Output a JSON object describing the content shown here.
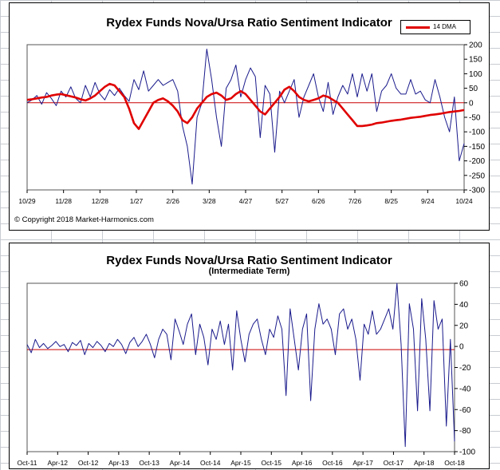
{
  "chart_data": [
    {
      "type": "line",
      "title": "Rydex Funds Nova/Ursa  Ratio Sentiment Indicator",
      "subtitle": "",
      "copyright": "© Copyright 2018 Market-Harmonics.com",
      "x_tick_labels": [
        "10/29",
        "11/28",
        "12/28",
        "1/27",
        "2/26",
        "3/28",
        "4/27",
        "5/27",
        "6/26",
        "7/26",
        "8/25",
        "9/24",
        "10/24"
      ],
      "y_tick_labels": [
        "200",
        "150",
        "100",
        "50",
        "0",
        "-50",
        "-100",
        "-150",
        "-200",
        "-250",
        "-300"
      ],
      "ylim": [
        -300,
        200
      ],
      "legend": {
        "entries": [
          "14 DMA"
        ],
        "position": "top-right"
      },
      "zero_line": true,
      "colors": {
        "raw": "#1a1a8c",
        "average": "#e00000",
        "zero_line": "#cc0000"
      },
      "x": [
        0,
        4,
        8,
        12,
        16,
        20,
        24,
        28,
        32,
        36,
        40,
        44,
        48,
        52,
        56,
        60,
        64,
        68,
        72,
        76,
        80,
        84,
        88,
        92,
        96,
        100,
        104,
        108,
        112,
        116,
        120,
        124,
        128,
        132,
        136,
        140,
        144,
        148,
        152,
        156,
        160,
        164,
        168,
        172,
        176,
        180,
        184,
        188,
        192,
        196,
        200,
        204,
        208,
        212,
        216,
        220,
        224,
        228,
        232,
        236,
        240,
        244,
        248,
        252,
        256,
        260,
        264,
        268,
        272,
        276,
        280,
        284,
        288,
        292,
        296,
        300,
        304,
        308,
        312,
        316,
        320,
        324,
        328,
        332,
        336,
        340,
        344,
        348,
        352,
        356,
        360
      ],
      "series": [
        {
          "name": "",
          "style": "raw",
          "values": [
            0,
            10,
            25,
            -5,
            35,
            15,
            -10,
            40,
            20,
            55,
            15,
            0,
            60,
            20,
            70,
            30,
            10,
            45,
            25,
            50,
            25,
            5,
            80,
            45,
            110,
            40,
            60,
            80,
            60,
            70,
            80,
            40,
            -80,
            -150,
            -280,
            -50,
            0,
            185,
            80,
            -50,
            -150,
            50,
            80,
            130,
            20,
            80,
            120,
            90,
            -120,
            60,
            30,
            -170,
            40,
            0,
            40,
            80,
            -50,
            20,
            60,
            100,
            20,
            -30,
            70,
            -40,
            20,
            60,
            30,
            100,
            20,
            100,
            40,
            100,
            -30,
            40,
            60,
            100,
            50,
            30,
            30,
            80,
            30,
            40,
            10,
            0,
            80,
            20,
            -50,
            -100,
            20,
            -200,
            -140
          ]
        },
        {
          "name": "14 DMA",
          "style": "average",
          "values": [
            10,
            12,
            15,
            18,
            20,
            25,
            28,
            30,
            26,
            22,
            18,
            12,
            8,
            15,
            25,
            40,
            55,
            65,
            60,
            40,
            20,
            -20,
            -70,
            -90,
            -60,
            -30,
            0,
            10,
            15,
            5,
            -10,
            -30,
            -60,
            -70,
            -50,
            -20,
            0,
            20,
            30,
            35,
            25,
            10,
            15,
            30,
            40,
            30,
            10,
            -10,
            -30,
            -40,
            -20,
            0,
            20,
            45,
            55,
            40,
            20,
            10,
            5,
            10,
            15,
            25,
            20,
            10,
            0,
            -20,
            -40,
            -60,
            -80,
            -80,
            -78,
            -75,
            -70,
            -68,
            -65,
            -62,
            -60,
            -58,
            -55,
            -52,
            -50,
            -48,
            -45,
            -42,
            -40,
            -38,
            -35,
            -32,
            -30,
            -28,
            -25
          ]
        }
      ]
    },
    {
      "type": "line",
      "title": "Rydex Funds Nova/Ursa  Ratio Sentiment Indicator",
      "subtitle": "(Intermediate Term)",
      "x_tick_labels": [
        "Oct-11",
        "Apr-12",
        "Oct-12",
        "Apr-13",
        "Oct-13",
        "Apr-14",
        "Oct-14",
        "Apr-15",
        "Oct-15",
        "Apr-16",
        "Oct-16",
        "Apr-17",
        "Oct-17",
        "Apr-18",
        "Oct-18"
      ],
      "y_tick_labels": [
        "60",
        "40",
        "20",
        "0",
        "-20",
        "-40",
        "-60",
        "-80",
        "-100"
      ],
      "ylim": [
        -100,
        65
      ],
      "legend": null,
      "zero_line": true,
      "colors": {
        "raw": "#1a1a8c",
        "zero_line": "#cc0000"
      },
      "x": [
        0,
        5,
        10,
        15,
        20,
        25,
        30,
        35,
        40,
        45,
        50,
        55,
        60,
        65,
        70,
        75,
        80,
        85,
        90,
        95,
        100,
        105,
        110,
        115,
        120,
        125,
        130,
        135,
        140,
        145,
        150,
        155,
        160,
        165,
        170,
        175,
        180,
        185,
        190,
        195,
        200,
        205,
        210,
        215,
        220,
        225,
        230,
        235,
        240,
        245,
        250,
        255,
        260,
        265,
        270,
        275,
        280,
        285,
        290,
        295,
        300,
        305,
        310,
        315,
        320,
        325,
        330,
        335,
        340,
        345,
        350,
        355,
        360,
        365,
        370,
        375,
        380,
        385,
        390,
        395,
        400,
        405,
        410,
        415,
        420,
        425,
        430,
        435,
        440,
        445,
        450,
        455,
        460,
        465,
        470,
        475,
        480,
        485,
        490,
        495,
        500,
        505,
        510,
        515,
        520
      ],
      "series": [
        {
          "name": "",
          "style": "raw",
          "values": [
            5,
            -3,
            10,
            2,
            6,
            1,
            4,
            8,
            3,
            5,
            -2,
            7,
            4,
            9,
            -5,
            6,
            2,
            8,
            4,
            -2,
            6,
            3,
            10,
            5,
            -4,
            7,
            12,
            3,
            8,
            15,
            5,
            -8,
            10,
            20,
            15,
            -10,
            30,
            18,
            5,
            25,
            35,
            -5,
            25,
            12,
            -15,
            20,
            10,
            28,
            5,
            25,
            -20,
            38,
            10,
            -12,
            15,
            25,
            30,
            10,
            -5,
            20,
            12,
            33,
            20,
            -45,
            40,
            10,
            -20,
            20,
            35,
            -50,
            20,
            45,
            25,
            30,
            20,
            -5,
            35,
            40,
            20,
            30,
            10,
            -30,
            25,
            15,
            38,
            15,
            20,
            30,
            40,
            20,
            65,
            5,
            -95,
            45,
            20,
            -60,
            50,
            10,
            -60,
            48,
            20,
            30,
            -75,
            10,
            -90
          ]
        }
      ]
    }
  ]
}
